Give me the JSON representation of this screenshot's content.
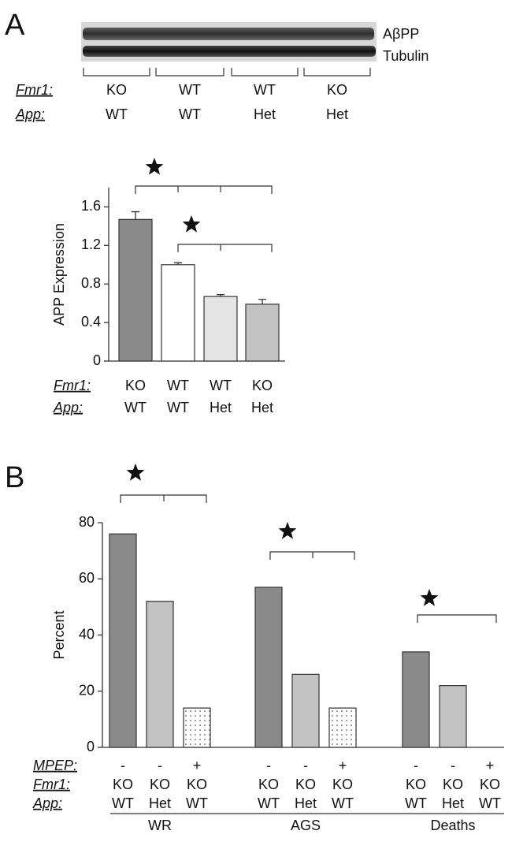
{
  "panel_labels": [
    "A",
    "B"
  ],
  "blot": {
    "bands": [
      "AβPP",
      "Tubulin"
    ],
    "category_rows": [
      {
        "name": "Fmr1:",
        "labels": [
          "KO",
          "WT",
          "WT",
          "KO"
        ]
      },
      {
        "name": "App:",
        "labels": [
          "WT",
          "WT",
          "Het",
          "Het"
        ]
      }
    ]
  },
  "chart_data": [
    {
      "type": "bar",
      "y_label": "APP Expression",
      "category_rows": [
        {
          "name": "Fmr1:",
          "labels": [
            "KO",
            "WT",
            "WT",
            "KO"
          ]
        },
        {
          "name": "App:",
          "labels": [
            "WT",
            "WT",
            "Het",
            "Het"
          ]
        }
      ],
      "values": [
        1.47,
        1.0,
        0.67,
        0.59
      ],
      "errors": [
        0.08,
        0.02,
        0.02,
        0.05
      ],
      "colors": [
        "#8a8a8a",
        "#ffffff",
        "#e4e4e4",
        "#c2c2c2"
      ],
      "ylim": [
        0,
        1.8
      ],
      "yticks": [
        0,
        0.4,
        0.8,
        1.2,
        1.6
      ]
    },
    {
      "type": "grouped_bar",
      "y_label": "Percent",
      "groups": [
        "WR",
        "AGS",
        "Deaths"
      ],
      "category_rows": [
        {
          "name": "MPEP:",
          "labels": [
            "-",
            "-",
            "+",
            "-",
            "-",
            "+",
            "-",
            "-",
            "+"
          ]
        },
        {
          "name": "Fmr1:",
          "labels": [
            "KO",
            "KO",
            "KO",
            "KO",
            "KO",
            "KO",
            "KO",
            "KO",
            "KO"
          ]
        },
        {
          "name": "App:",
          "labels": [
            "WT",
            "Het",
            "WT",
            "WT",
            "Het",
            "WT",
            "WT",
            "Het",
            "WT"
          ]
        }
      ],
      "series": [
        {
          "color": "#8a8a8a",
          "values": [
            76,
            57,
            34
          ]
        },
        {
          "color": "#c2c2c2",
          "values": [
            52,
            26,
            22
          ]
        },
        {
          "color": "#ffffff",
          "pattern": "dots",
          "values": [
            14,
            14,
            0
          ]
        }
      ],
      "ylim": [
        0,
        80
      ],
      "yticks": [
        0,
        20,
        40,
        60,
        80
      ]
    }
  ]
}
